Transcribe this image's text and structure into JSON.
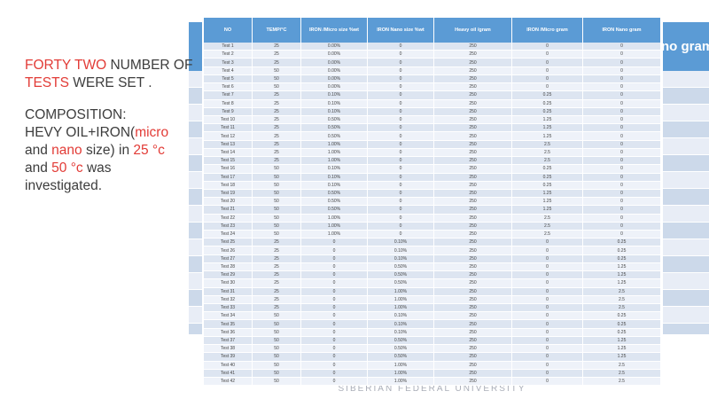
{
  "left_panel": {
    "para1_lines": [
      [
        {
          "t": "FORTY TWO ",
          "red": true
        },
        {
          "t": "NUMBER OF",
          "red": false
        }
      ],
      [
        {
          "t": "TESTS",
          "red": true
        },
        {
          "t": " WERE SET .",
          "red": false
        }
      ]
    ],
    "para2_lines": [
      [
        {
          "t": "COMPOSITION:",
          "red": false
        }
      ],
      [
        {
          "t": "HEVY OIL+IRON(",
          "red": false
        },
        {
          "t": "micro",
          "red": true
        }
      ],
      [
        {
          "t": "and ",
          "red": false
        },
        {
          "t": "nano",
          "red": true
        },
        {
          "t": " size) in ",
          "red": false
        },
        {
          "t": "25 °c",
          "red": true
        }
      ],
      [
        {
          "t": "and ",
          "red": false
        },
        {
          "t": "50 °c",
          "red": true
        },
        {
          "t": " was",
          "red": false
        }
      ],
      [
        {
          "t": "investigated.",
          "red": false
        }
      ]
    ]
  },
  "table": {
    "headers": [
      "NO",
      "TEMP/°C",
      "IRON /Micro size %wt",
      "IRON Nano size %wt",
      "Heavy oil /gram",
      "IRON /Micro gram",
      "IRON Nano gram"
    ],
    "rows": [
      [
        "Test 1",
        "25",
        "0.00%",
        "0",
        "250",
        "0",
        "0"
      ],
      [
        "Test 2",
        "25",
        "0.00%",
        "0",
        "250",
        "0",
        "0"
      ],
      [
        "Test 3",
        "25",
        "0.00%",
        "0",
        "250",
        "0",
        "0"
      ],
      [
        "Test 4",
        "50",
        "0.00%",
        "0",
        "250",
        "0",
        "0"
      ],
      [
        "Test 5",
        "50",
        "0.00%",
        "0",
        "250",
        "0",
        "0"
      ],
      [
        "Test 6",
        "50",
        "0.00%",
        "0",
        "250",
        "0",
        "0"
      ],
      [
        "Test 7",
        "25",
        "0.10%",
        "0",
        "250",
        "0.25",
        "0"
      ],
      [
        "Test 8",
        "25",
        "0.10%",
        "0",
        "250",
        "0.25",
        "0"
      ],
      [
        "Test 9",
        "25",
        "0.10%",
        "0",
        "250",
        "0.25",
        "0"
      ],
      [
        "Test 10",
        "25",
        "0.50%",
        "0",
        "250",
        "1.25",
        "0"
      ],
      [
        "Test 11",
        "25",
        "0.50%",
        "0",
        "250",
        "1.25",
        "0"
      ],
      [
        "Test 12",
        "25",
        "0.50%",
        "0",
        "250",
        "1.25",
        "0"
      ],
      [
        "Test 13",
        "25",
        "1.00%",
        "0",
        "250",
        "2.5",
        "0"
      ],
      [
        "Test 14",
        "25",
        "1.00%",
        "0",
        "250",
        "2.5",
        "0"
      ],
      [
        "Test 15",
        "25",
        "1.00%",
        "0",
        "250",
        "2.5",
        "0"
      ],
      [
        "Test 16",
        "50",
        "0.10%",
        "0",
        "250",
        "0.25",
        "0"
      ],
      [
        "Test 17",
        "50",
        "0.10%",
        "0",
        "250",
        "0.25",
        "0"
      ],
      [
        "Test 18",
        "50",
        "0.10%",
        "0",
        "250",
        "0.25",
        "0"
      ],
      [
        "Test 19",
        "50",
        "0.50%",
        "0",
        "250",
        "1.25",
        "0"
      ],
      [
        "Test 20",
        "50",
        "0.50%",
        "0",
        "250",
        "1.25",
        "0"
      ],
      [
        "Test 21",
        "50",
        "0.50%",
        "0",
        "250",
        "1.25",
        "0"
      ],
      [
        "Test 22",
        "50",
        "1.00%",
        "0",
        "250",
        "2.5",
        "0"
      ],
      [
        "Test 23",
        "50",
        "1.00%",
        "0",
        "250",
        "2.5",
        "0"
      ],
      [
        "Test 24",
        "50",
        "1.00%",
        "0",
        "250",
        "2.5",
        "0"
      ],
      [
        "Test 25",
        "25",
        "0",
        "0.10%",
        "250",
        "0",
        "0.25"
      ],
      [
        "Test 26",
        "25",
        "0",
        "0.10%",
        "250",
        "0",
        "0.25"
      ],
      [
        "Test 27",
        "25",
        "0",
        "0.10%",
        "250",
        "0",
        "0.25"
      ],
      [
        "Test 28",
        "25",
        "0",
        "0.50%",
        "250",
        "0",
        "1.25"
      ],
      [
        "Test 29",
        "25",
        "0",
        "0.50%",
        "250",
        "0",
        "1.25"
      ],
      [
        "Test 30",
        "25",
        "0",
        "0.50%",
        "250",
        "0",
        "1.25"
      ],
      [
        "Test 31",
        "25",
        "0",
        "1.00%",
        "250",
        "0",
        "2.5"
      ],
      [
        "Test 32",
        "25",
        "0",
        "1.00%",
        "250",
        "0",
        "2.5"
      ],
      [
        "Test 33",
        "25",
        "0",
        "1.00%",
        "250",
        "0",
        "2.5"
      ],
      [
        "Test 34",
        "50",
        "0",
        "0.10%",
        "250",
        "0",
        "0.25"
      ],
      [
        "Test 35",
        "50",
        "0",
        "0.10%",
        "250",
        "0",
        "0.25"
      ],
      [
        "Test 36",
        "50",
        "0",
        "0.10%",
        "250",
        "0",
        "0.25"
      ],
      [
        "Test 37",
        "50",
        "0",
        "0.50%",
        "250",
        "0",
        "1.25"
      ],
      [
        "Test 38",
        "50",
        "0",
        "0.50%",
        "250",
        "0",
        "1.25"
      ],
      [
        "Test 39",
        "50",
        "0",
        "0.50%",
        "250",
        "0",
        "1.25"
      ],
      [
        "Test 40",
        "50",
        "0",
        "1.00%",
        "250",
        "0",
        "2.5"
      ],
      [
        "Test 41",
        "50",
        "0",
        "1.00%",
        "250",
        "0",
        "2.5"
      ],
      [
        "Test 42",
        "50",
        "0",
        "1.00%",
        "250",
        "0",
        "2.5"
      ]
    ]
  },
  "background_table": {
    "header_fragment": "no gram"
  },
  "footer": {
    "text": "SIBERIAN FEDERAL UNIVERSITY"
  },
  "colors": {
    "accent_blue": "#5b9bd5",
    "row_dark": "#dde5f1",
    "row_light": "#eef2f9",
    "bg_row_dark": "#ccd9ea",
    "bg_row_light": "#e8edf6",
    "red": "#e23b36",
    "text_dark": "#3d3d3d",
    "footer_gray": "#aaaeb8"
  }
}
